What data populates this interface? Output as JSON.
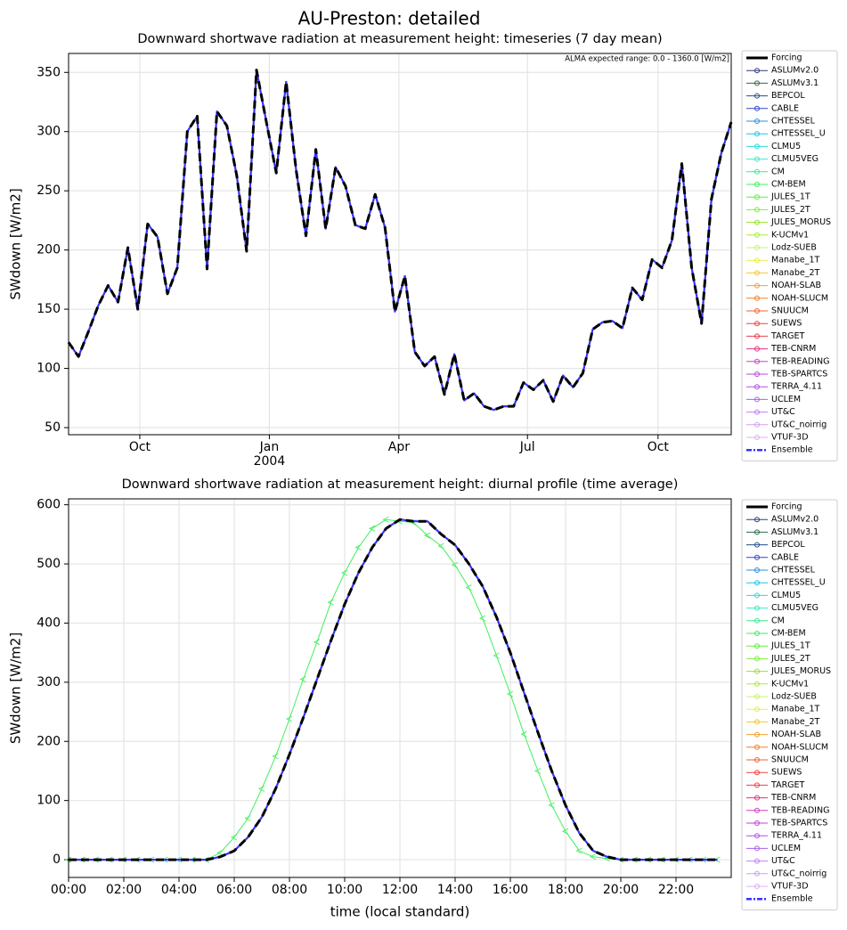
{
  "title": "AU-Preston: detailed",
  "chart_data": [
    {
      "type": "line",
      "title": "Downward shortwave radiation at measurement height: timeseries (7 day mean)",
      "ylabel": "SWdown [W/m2]",
      "annotation": "ALMA expected range: 0.0 - 1360.0 [W/m2]",
      "xlim": [
        0,
        67
      ],
      "xticks": [
        {
          "value": 7.2,
          "label": "Oct"
        },
        {
          "value": 20.3,
          "label": "Jan",
          "sublabel": "2004"
        },
        {
          "value": 33.4,
          "label": "Apr"
        },
        {
          "value": 46.4,
          "label": "Jul"
        },
        {
          "value": 59.6,
          "label": "Oct"
        }
      ],
      "ylim": [
        44,
        366
      ],
      "yticks": [
        50,
        100,
        150,
        200,
        250,
        300,
        350
      ],
      "grid": true,
      "series": [
        {
          "name": "Ensemble",
          "color": "#3333ff",
          "values": [
            122,
            110,
            131,
            153,
            170,
            156,
            202,
            150,
            222,
            211,
            163,
            185,
            300,
            313,
            184,
            317,
            305,
            263,
            199,
            352,
            308,
            265,
            342,
            268,
            212,
            285,
            218,
            270,
            254,
            221,
            218,
            247,
            219,
            148,
            178,
            114,
            102,
            110,
            78,
            112,
            73,
            79,
            68,
            65,
            68,
            68,
            88,
            82,
            90,
            72,
            94,
            84,
            96,
            133,
            139,
            140,
            134,
            168,
            158,
            192,
            185,
            208,
            273,
            185,
            138,
            243,
            282,
            308
          ]
        },
        {
          "name": "Forcing",
          "color": "#000000",
          "dash": true,
          "values": [
            122,
            110,
            131,
            153,
            170,
            156,
            202,
            150,
            222,
            211,
            163,
            185,
            300,
            313,
            184,
            317,
            305,
            263,
            199,
            352,
            308,
            265,
            342,
            268,
            212,
            285,
            218,
            270,
            254,
            221,
            218,
            247,
            219,
            148,
            178,
            114,
            102,
            110,
            78,
            112,
            73,
            79,
            68,
            65,
            68,
            68,
            88,
            82,
            90,
            72,
            94,
            84,
            96,
            133,
            139,
            140,
            134,
            168,
            158,
            192,
            185,
            208,
            273,
            185,
            138,
            243,
            282,
            308
          ]
        }
      ],
      "legend": [
        {
          "name": "Forcing",
          "color": "#000000"
        },
        {
          "name": "ASLUMv2.0",
          "color": "#333a7a"
        },
        {
          "name": "ASLUMv3.1",
          "color": "#2e6b4a"
        },
        {
          "name": "BEPCOL",
          "color": "#2a4a8a"
        },
        {
          "name": "CABLE",
          "color": "#3344cc"
        },
        {
          "name": "CHTESSEL",
          "color": "#2a8fe0"
        },
        {
          "name": "CHTESSEL_U",
          "color": "#22c4e8"
        },
        {
          "name": "CLMU5",
          "color": "#2dd9d9"
        },
        {
          "name": "CLMU5VEG",
          "color": "#3ee8c0"
        },
        {
          "name": "CM",
          "color": "#3ee890"
        },
        {
          "name": "CM-BEM",
          "color": "#40ee60"
        },
        {
          "name": "JULES_1T",
          "color": "#60ee40"
        },
        {
          "name": "JULES_2T",
          "color": "#80ee40"
        },
        {
          "name": "JULES_MORUS",
          "color": "#9be030"
        },
        {
          "name": "K-UCMv1",
          "color": "#a8ec40"
        },
        {
          "name": "Lodz-SUEB",
          "color": "#c8f070"
        },
        {
          "name": "Manabe_1T",
          "color": "#e8f040"
        },
        {
          "name": "Manabe_2T",
          "color": "#f0c830"
        },
        {
          "name": "NOAH-SLAB",
          "color": "#f0a030"
        },
        {
          "name": "NOAH-SLUCM",
          "color": "#f08030"
        },
        {
          "name": "SNUUCM",
          "color": "#f06030"
        },
        {
          "name": "SUEWS",
          "color": "#f04040"
        },
        {
          "name": "TARGET",
          "color": "#e84050"
        },
        {
          "name": "TEB-CNRM",
          "color": "#e03080"
        },
        {
          "name": "TEB-READING",
          "color": "#d040c0"
        },
        {
          "name": "TEB-SPARTCS",
          "color": "#c040e0"
        },
        {
          "name": "TERRA_4.11",
          "color": "#b050e8"
        },
        {
          "name": "UCLEM",
          "color": "#a860f0"
        },
        {
          "name": "UT&C",
          "color": "#c080f0"
        },
        {
          "name": "UT&C_noirrig",
          "color": "#d0a0f0"
        },
        {
          "name": "VTUF-3D",
          "color": "#e0b0f0"
        },
        {
          "name": "Ensemble",
          "color": "#3333ff"
        }
      ]
    },
    {
      "type": "line",
      "title": "Downward shortwave radiation at measurement height: diurnal profile (time average)",
      "ylabel": "SWdown [W/m2]",
      "xlabel": "time (local standard)",
      "x": [
        0,
        0.5,
        1,
        1.5,
        2,
        2.5,
        3,
        3.5,
        4,
        4.5,
        5,
        5.5,
        6,
        6.5,
        7,
        7.5,
        8,
        8.5,
        9,
        9.5,
        10,
        10.5,
        11,
        11.5,
        12,
        12.5,
        13,
        13.5,
        14,
        14.5,
        15,
        15.5,
        16,
        16.5,
        17,
        17.5,
        18,
        18.5,
        19,
        19.5,
        20,
        20.5,
        21,
        21.5,
        22,
        22.5,
        23,
        23.5
      ],
      "xlim": [
        0,
        24
      ],
      "xticks": [
        {
          "value": 0,
          "label": "00:00"
        },
        {
          "value": 2,
          "label": "02:00"
        },
        {
          "value": 4,
          "label": "04:00"
        },
        {
          "value": 6,
          "label": "06:00"
        },
        {
          "value": 8,
          "label": "08:00"
        },
        {
          "value": 10,
          "label": "10:00"
        },
        {
          "value": 12,
          "label": "12:00"
        },
        {
          "value": 14,
          "label": "14:00"
        },
        {
          "value": 16,
          "label": "16:00"
        },
        {
          "value": 18,
          "label": "18:00"
        },
        {
          "value": 20,
          "label": "20:00"
        },
        {
          "value": 22,
          "label": "22:00"
        }
      ],
      "ylim": [
        -30,
        610
      ],
      "yticks": [
        0,
        100,
        200,
        300,
        400,
        500,
        600
      ],
      "grid": true,
      "series": [
        {
          "name": "CM-BEM",
          "color": "#40ee60",
          "thin": true,
          "marker": true,
          "values": [
            0,
            0,
            0,
            0,
            0,
            0,
            0,
            0,
            0,
            0,
            0,
            12,
            38,
            70,
            120,
            175,
            238,
            305,
            368,
            435,
            485,
            528,
            560,
            575,
            572,
            570,
            548,
            530,
            498,
            460,
            408,
            345,
            280,
            212,
            150,
            92,
            48,
            15,
            5,
            2,
            0,
            0,
            0,
            0,
            0,
            0,
            0,
            0
          ]
        },
        {
          "name": "Ensemble",
          "color": "#3333ff",
          "values": [
            0,
            0,
            0,
            0,
            0,
            0,
            0,
            0,
            0,
            0,
            0,
            5,
            15,
            38,
            72,
            120,
            178,
            240,
            305,
            370,
            432,
            485,
            528,
            560,
            575,
            572,
            572,
            550,
            532,
            500,
            462,
            410,
            350,
            282,
            215,
            150,
            92,
            45,
            15,
            5,
            0,
            0,
            0,
            0,
            0,
            0,
            0,
            0
          ]
        },
        {
          "name": "Forcing",
          "color": "#000000",
          "dash": true,
          "values": [
            0,
            0,
            0,
            0,
            0,
            0,
            0,
            0,
            0,
            0,
            0,
            5,
            15,
            38,
            72,
            120,
            178,
            240,
            305,
            370,
            432,
            485,
            528,
            560,
            575,
            572,
            572,
            550,
            532,
            500,
            462,
            410,
            350,
            282,
            215,
            150,
            92,
            45,
            15,
            5,
            0,
            0,
            0,
            0,
            0,
            0,
            0,
            0
          ]
        }
      ],
      "legend": [
        {
          "name": "Forcing",
          "color": "#000000"
        },
        {
          "name": "ASLUMv2.0",
          "color": "#333a7a"
        },
        {
          "name": "ASLUMv3.1",
          "color": "#2e6b4a"
        },
        {
          "name": "BEPCOL",
          "color": "#2a4a8a"
        },
        {
          "name": "CABLE",
          "color": "#3344cc"
        },
        {
          "name": "CHTESSEL",
          "color": "#2a8fe0"
        },
        {
          "name": "CHTESSEL_U",
          "color": "#22c4e8"
        },
        {
          "name": "CLMU5",
          "color": "#2dd9d9"
        },
        {
          "name": "CLMU5VEG",
          "color": "#3ee8c0"
        },
        {
          "name": "CM",
          "color": "#3ee890"
        },
        {
          "name": "CM-BEM",
          "color": "#40ee60"
        },
        {
          "name": "JULES_1T",
          "color": "#60ee40"
        },
        {
          "name": "JULES_2T",
          "color": "#80ee40"
        },
        {
          "name": "JULES_MORUS",
          "color": "#9be030"
        },
        {
          "name": "K-UCMv1",
          "color": "#a8ec40"
        },
        {
          "name": "Lodz-SUEB",
          "color": "#c8f070"
        },
        {
          "name": "Manabe_1T",
          "color": "#e8f040"
        },
        {
          "name": "Manabe_2T",
          "color": "#f0c830"
        },
        {
          "name": "NOAH-SLAB",
          "color": "#f0a030"
        },
        {
          "name": "NOAH-SLUCM",
          "color": "#f08030"
        },
        {
          "name": "SNUUCM",
          "color": "#f06030"
        },
        {
          "name": "SUEWS",
          "color": "#f04040"
        },
        {
          "name": "TARGET",
          "color": "#e84050"
        },
        {
          "name": "TEB-CNRM",
          "color": "#e03080"
        },
        {
          "name": "TEB-READING",
          "color": "#d040c0"
        },
        {
          "name": "TEB-SPARTCS",
          "color": "#c040e0"
        },
        {
          "name": "TERRA_4.11",
          "color": "#b050e8"
        },
        {
          "name": "UCLEM",
          "color": "#a860f0"
        },
        {
          "name": "UT&C",
          "color": "#c080f0"
        },
        {
          "name": "UT&C_noirrig",
          "color": "#d0a0f0"
        },
        {
          "name": "VTUF-3D",
          "color": "#e0b0f0"
        },
        {
          "name": "Ensemble",
          "color": "#3333ff"
        }
      ]
    }
  ]
}
